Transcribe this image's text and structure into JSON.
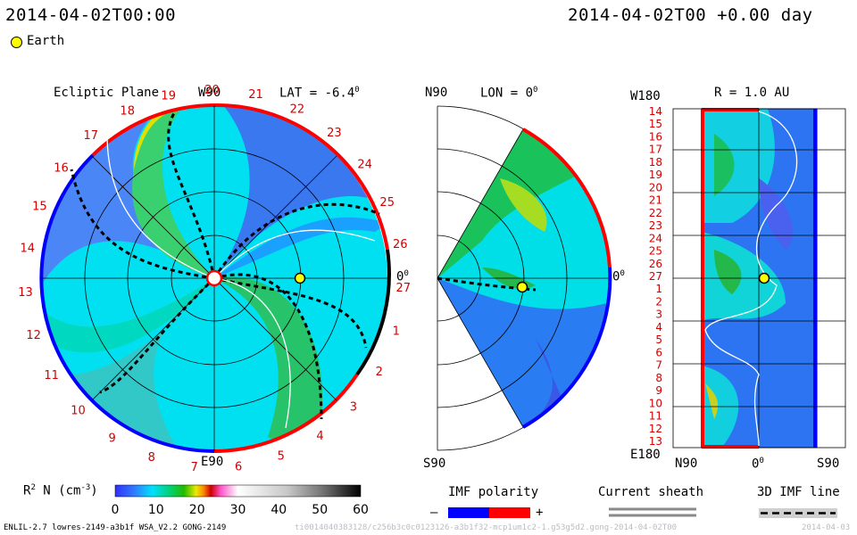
{
  "header": {
    "time_left": "2014-04-02T00:00",
    "time_right": "2014-04-02T00 +0.00 day",
    "legend_label": "Earth"
  },
  "colors": {
    "earth": "#ffff00",
    "positive_polarity": "#ff0000",
    "negative_polarity": "#0000ff",
    "sheath_gray": "#8a8a8a"
  },
  "panels": {
    "ecliptic": {
      "title": "Ecliptic Plane",
      "lat_label": "LAT = -6.4",
      "lat_sup": "0",
      "top_label": "W90",
      "bottom_label": "E90",
      "right_label": "0",
      "right_sup": "0",
      "rotation_numbers": [
        "19",
        "20",
        "21",
        "22",
        "23",
        "24",
        "25",
        "26",
        "27",
        "1",
        "2",
        "3",
        "4",
        "5",
        "6",
        "7",
        "8",
        "9",
        "10",
        "11",
        "12",
        "13",
        "14",
        "15",
        "16",
        "17",
        "18"
      ]
    },
    "meridional": {
      "top_label": "N90",
      "lon_label": "LON = 0",
      "lon_sup": "0",
      "bottom_label": "S90",
      "right_label": "0",
      "right_sup": "0"
    },
    "sphere": {
      "top_label": "W180",
      "r_label": "R = 1.0 AU",
      "bottom_label": "E180",
      "x_left": "N90",
      "x_mid": "0",
      "x_mid_sup": "0",
      "x_right": "S90",
      "row_labels": [
        "14",
        "15",
        "16",
        "17",
        "18",
        "19",
        "20",
        "21",
        "22",
        "23",
        "24",
        "25",
        "26",
        "27",
        "1",
        "2",
        "3",
        "4",
        "5",
        "6",
        "7",
        "8",
        "9",
        "10",
        "11",
        "12",
        "13"
      ]
    }
  },
  "colorbar": {
    "label_main": "R",
    "label_sup": "2",
    "label_rest": " N (cm",
    "label_exp": "-3",
    "label_end": ")",
    "ticks": [
      "0",
      "10",
      "20",
      "30",
      "40",
      "50",
      "60"
    ]
  },
  "legends": {
    "imf_polarity": "IMF polarity",
    "minus": "–",
    "plus": "+",
    "current_sheath": "Current sheath",
    "imf_line": "3D IMF line"
  },
  "footer": {
    "model": "ENLIL-2.7 lowres-2149-a3b1f WSA_V2.2 GONG-2149",
    "run_id": "ti0014040383128/c256b3c0c0123126-a3b1f32-mcp1um1c2-1.g53g5d2.gong-2014-04-02T00",
    "date": "2014-04-03"
  },
  "chart_data": [
    {
      "type": "heatmap",
      "title": "Ecliptic Plane",
      "quantity": "R2 N (cm-3)",
      "zlim": [
        0,
        60
      ],
      "earth": {
        "lat_deg": -6.4,
        "lon_deg": 0,
        "r_au": 1.0
      },
      "carrington_rotation_labels": [
        "19",
        "20",
        "21",
        "22",
        "23",
        "24",
        "25",
        "26",
        "27",
        "1",
        "2",
        "3",
        "4",
        "5",
        "6",
        "7",
        "8",
        "9",
        "10",
        "11",
        "12",
        "13",
        "14",
        "15",
        "16",
        "17",
        "18"
      ]
    },
    {
      "type": "heatmap",
      "title": "LON = 0",
      "quantity": "R2 N (cm-3)",
      "latitude_range_deg": [
        -90,
        90
      ],
      "zlim": [
        0,
        60
      ]
    },
    {
      "type": "heatmap",
      "title": "R = 1.0 AU",
      "quantity": "R2 N (cm-3)",
      "x_ticks": [
        "N90",
        "0",
        "S90"
      ],
      "y_ticks": [
        "W180",
        "E180"
      ],
      "zlim": [
        0,
        60
      ]
    }
  ]
}
